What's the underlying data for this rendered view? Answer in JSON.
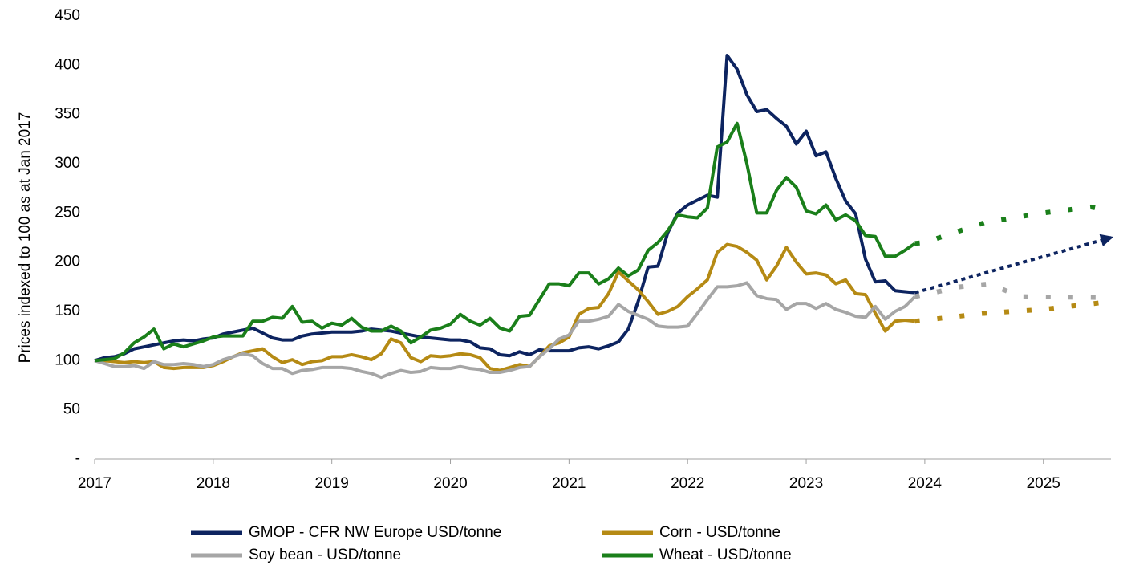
{
  "chart_data": {
    "type": "line",
    "y_label": "Prices indexed to 100 as at Jan 2017",
    "xlim": [
      2017,
      2025.57
    ],
    "xticks": [
      2017,
      2018,
      2019,
      2020,
      2021,
      2022,
      2023,
      2024,
      2025
    ],
    "ylim": [
      0,
      450
    ],
    "yticks": [
      {
        "value": 0,
        "label": "-"
      },
      50,
      100,
      150,
      200,
      250,
      300,
      350,
      400,
      450
    ],
    "x": [
      2017,
      2017.083,
      2017.167,
      2017.25,
      2017.333,
      2017.417,
      2017.5,
      2017.583,
      2017.667,
      2017.75,
      2017.833,
      2017.917,
      2018,
      2018.083,
      2018.167,
      2018.25,
      2018.333,
      2018.417,
      2018.5,
      2018.583,
      2018.667,
      2018.75,
      2018.833,
      2018.917,
      2019,
      2019.083,
      2019.167,
      2019.25,
      2019.333,
      2019.417,
      2019.5,
      2019.583,
      2019.667,
      2019.75,
      2019.833,
      2019.917,
      2020,
      2020.083,
      2020.167,
      2020.25,
      2020.333,
      2020.417,
      2020.5,
      2020.583,
      2020.667,
      2020.75,
      2020.833,
      2020.917,
      2021,
      2021.083,
      2021.167,
      2021.25,
      2021.333,
      2021.417,
      2021.5,
      2021.583,
      2021.667,
      2021.75,
      2021.833,
      2021.917,
      2022,
      2022.083,
      2022.167,
      2022.25,
      2022.333,
      2022.417,
      2022.5,
      2022.583,
      2022.667,
      2022.75,
      2022.833,
      2022.917,
      2023,
      2023.083,
      2023.167,
      2023.25,
      2023.333,
      2023.417,
      2023.5,
      2023.583,
      2023.667,
      2023.75,
      2023.833,
      2023.917
    ],
    "series": [
      {
        "name": "GMOP - CFR NW Europe USD/tonne",
        "color": "#0d2460",
        "values": [
          100,
          103,
          104,
          107,
          112,
          114,
          116,
          118,
          120,
          121,
          120,
          122,
          123,
          127,
          129,
          131,
          133,
          128,
          123,
          121,
          121,
          125,
          127,
          128,
          129,
          129,
          129,
          130,
          132,
          131,
          130,
          128,
          126,
          124,
          123,
          122,
          121,
          121,
          119,
          113,
          112,
          106,
          105,
          109,
          106,
          111,
          110,
          110,
          110,
          113,
          114,
          112,
          115,
          119,
          132,
          160,
          195,
          196,
          230,
          250,
          258,
          263,
          268,
          266,
          410,
          396,
          370,
          353,
          355,
          346,
          338,
          320,
          333,
          308,
          312,
          285,
          262,
          249,
          203,
          180,
          181,
          171,
          170,
          169
        ],
        "forecast_x": [
          2023.917,
          2025.57
        ],
        "forecast_values": [
          169,
          225
        ],
        "forecast_arrow": true
      },
      {
        "name": "Corn - USD/tonne",
        "color": "#b58a14",
        "values": [
          100,
          100,
          99,
          98,
          99,
          98,
          99,
          93,
          92,
          93,
          93,
          93,
          95,
          99,
          104,
          108,
          110,
          112,
          104,
          98,
          101,
          96,
          99,
          100,
          104,
          104,
          106,
          104,
          101,
          107,
          122,
          118,
          103,
          99,
          105,
          104,
          105,
          107,
          106,
          103,
          92,
          90,
          93,
          96,
          94,
          104,
          115,
          118,
          124,
          147,
          153,
          154,
          168,
          190,
          181,
          172,
          160,
          147,
          150,
          155,
          165,
          173,
          182,
          210,
          218,
          216,
          210,
          202,
          182,
          196,
          215,
          200,
          188,
          189,
          187,
          178,
          182,
          168,
          167,
          148,
          130,
          140,
          141,
          140
        ],
        "forecast_x": [
          2023.917,
          2024.5,
          2025,
          2025.57
        ],
        "forecast_values": [
          140,
          148,
          152,
          160
        ],
        "forecast_arrow": false
      },
      {
        "name": "Soy bean - USD/tonne",
        "color": "#a6a6a6",
        "values": [
          100,
          97,
          94,
          94,
          95,
          92,
          99,
          96,
          96,
          97,
          96,
          94,
          96,
          101,
          104,
          107,
          105,
          97,
          92,
          92,
          87,
          90,
          91,
          93,
          93,
          93,
          92,
          89,
          87,
          83,
          87,
          90,
          88,
          89,
          93,
          92,
          92,
          94,
          92,
          91,
          88,
          88,
          90,
          93,
          94,
          104,
          112,
          122,
          126,
          140,
          140,
          142,
          145,
          157,
          150,
          146,
          142,
          135,
          134,
          134,
          135,
          148,
          162,
          175,
          175,
          176,
          179,
          166,
          163,
          162,
          152,
          158,
          158,
          153,
          158,
          152,
          149,
          145,
          144,
          155,
          142,
          150,
          155,
          165
        ],
        "forecast_x": [
          2023.917,
          2024.3,
          2024.55,
          2024.8,
          2025.57
        ],
        "forecast_values": [
          165,
          175,
          178,
          165,
          164
        ],
        "forecast_arrow": false
      },
      {
        "name": "Wheat - USD/tonne",
        "color": "#1a7f1a",
        "values": [
          100,
          101,
          102,
          108,
          118,
          124,
          132,
          112,
          117,
          114,
          117,
          120,
          124,
          125,
          125,
          125,
          140,
          140,
          144,
          143,
          155,
          139,
          140,
          133,
          138,
          136,
          143,
          134,
          130,
          130,
          135,
          130,
          118,
          124,
          131,
          133,
          137,
          147,
          140,
          136,
          143,
          133,
          130,
          145,
          146,
          162,
          178,
          178,
          176,
          189,
          189,
          178,
          183,
          194,
          186,
          192,
          212,
          220,
          232,
          248,
          246,
          245,
          255,
          317,
          322,
          341,
          300,
          250,
          250,
          273,
          286,
          276,
          252,
          249,
          258,
          243,
          248,
          242,
          227,
          226,
          206,
          206,
          212,
          219
        ],
        "forecast_x": [
          2023.917,
          2024,
          2024.5,
          2025,
          2025.4,
          2025.57
        ],
        "forecast_values": [
          219,
          220,
          240,
          250,
          256,
          252
        ],
        "forecast_arrow": false
      }
    ]
  }
}
